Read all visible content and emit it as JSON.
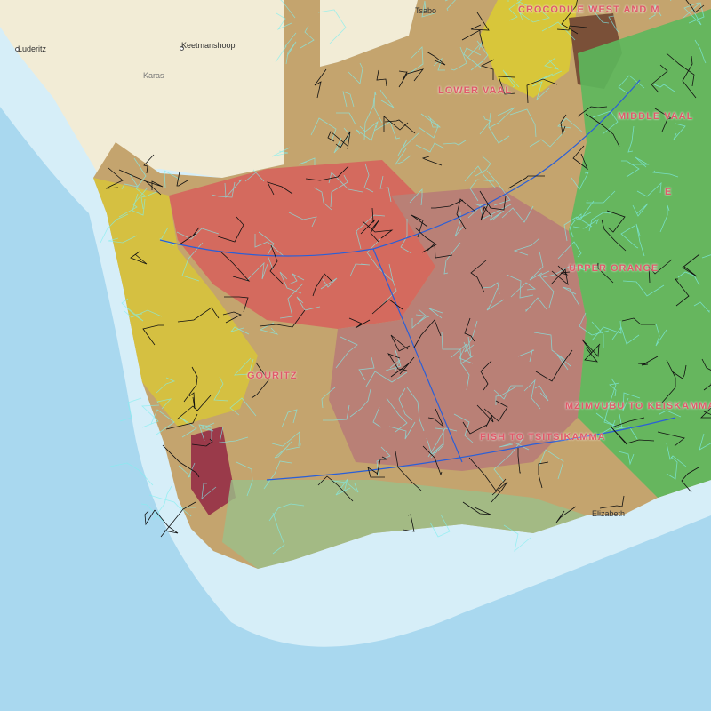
{
  "basemap": {
    "ocean_color": "#a9d8ef",
    "shelf_color": "#d6eef8",
    "land_color": "#f2ecd6"
  },
  "places": [
    {
      "name": "Luderitz"
    },
    {
      "name": "Keetmanshoop"
    },
    {
      "name": "Karas"
    },
    {
      "name": "Tsabo"
    },
    {
      "name": "Elizabeth"
    }
  ],
  "water_management_areas": [
    {
      "name": "CROCODILE WEST AND M"
    },
    {
      "name": "LOWER VAAL"
    },
    {
      "name": "MIDDLE VAAL"
    },
    {
      "name": "UPPER ORANGE"
    },
    {
      "name": "MZIMVUBU TO KEISKAMMA"
    },
    {
      "name": "GOURITZ"
    },
    {
      "name": "FISH TO TSITSIKAMMA"
    },
    {
      "name": "E"
    }
  ],
  "layer_colors": {
    "red_zone": "#d46a5e",
    "rose_zone": "#b98076",
    "tan_zone": "#c4a46e",
    "yellow_zone": "#d8c63a",
    "green_zone": "#5cb85c",
    "brown_zone": "#7a5038",
    "catchment_lines": "#7ff0f0",
    "rivers": "#2a5fd8",
    "boundaries": "#111111"
  }
}
